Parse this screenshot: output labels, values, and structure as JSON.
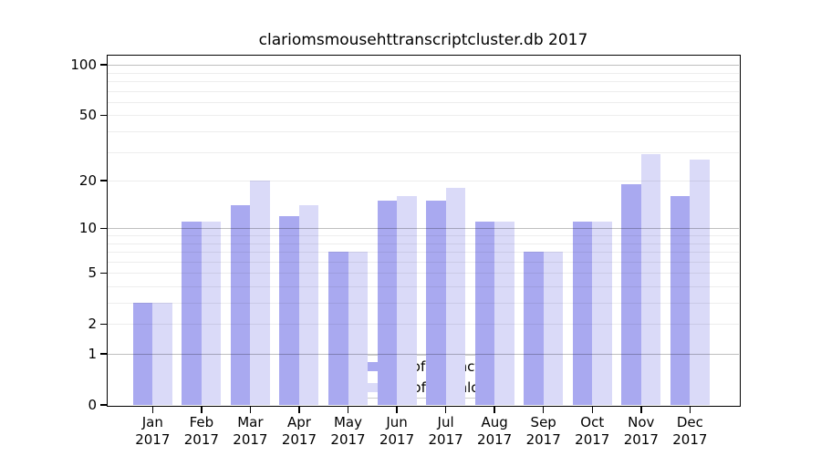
{
  "title": "clariomsmousehttranscriptcluster.db 2017",
  "chart_data": {
    "type": "bar",
    "title": "clariomsmousehttranscriptcluster.db 2017",
    "categories": [
      "Jan 2017",
      "Feb 2017",
      "Mar 2017",
      "Apr 2017",
      "May 2017",
      "Jun 2017",
      "Jul 2017",
      "Aug 2017",
      "Sep 2017",
      "Oct 2017",
      "Nov 2017",
      "Dec 2017"
    ],
    "series": [
      {
        "name": "Nb of distinct IPs",
        "color": "#a9a9f0",
        "values": [
          3,
          11,
          14,
          12,
          7,
          15,
          15,
          11,
          7,
          11,
          19,
          16
        ]
      },
      {
        "name": "Nb of downloads",
        "color": "#dadaf8",
        "values": [
          3,
          11,
          20,
          14,
          7,
          16,
          18,
          11,
          7,
          11,
          29,
          27
        ]
      }
    ],
    "xlabel": "",
    "ylabel": "",
    "yscale": "log(1+x)",
    "ylim": [
      0,
      114
    ],
    "yticks": [
      0,
      1,
      2,
      5,
      10,
      20,
      50,
      100
    ],
    "grid": true,
    "major_gridlines": [
      1,
      10,
      100
    ],
    "minor_gridlines": [
      2,
      3,
      4,
      5,
      6,
      7,
      8,
      9,
      20,
      30,
      40,
      50,
      60,
      70,
      80,
      90
    ],
    "legend_position": "lower center"
  },
  "colors": {
    "background": "#ffffff",
    "axis": "#000000",
    "grid_major": "rgba(0,0,0,0.25)",
    "grid_minor": "rgba(0,0,0,0.07)",
    "legend_border": "#cccccc"
  }
}
